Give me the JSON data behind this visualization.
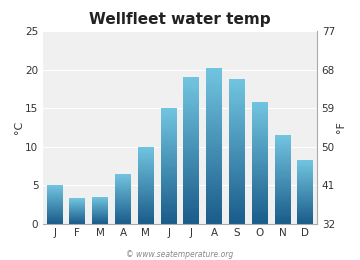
{
  "title": "Wellfleet water temp",
  "months": [
    "J",
    "F",
    "M",
    "A",
    "M",
    "J",
    "J",
    "A",
    "S",
    "O",
    "N",
    "D"
  ],
  "values_c": [
    5.0,
    3.3,
    3.5,
    6.5,
    10.0,
    15.0,
    19.0,
    20.2,
    18.8,
    15.8,
    11.5,
    8.2
  ],
  "ylim_c": [
    0,
    25
  ],
  "yticks_c": [
    0,
    5,
    10,
    15,
    20,
    25
  ],
  "yticks_f": [
    32,
    41,
    50,
    59,
    68,
    77
  ],
  "ylabel_left": "°C",
  "ylabel_right": "°F",
  "fig_bg_color": "#ffffff",
  "plot_bg_color": "#f0f0f0",
  "bar_color_top": "#72c5e0",
  "bar_color_bottom": "#1a5c8a",
  "title_fontsize": 11,
  "axis_fontsize": 7.5,
  "label_fontsize": 8,
  "watermark": "© www.seatemperature.org"
}
